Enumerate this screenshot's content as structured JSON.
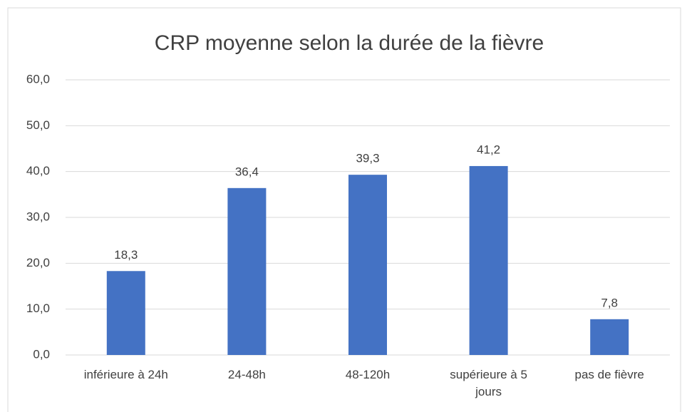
{
  "chart_data": {
    "type": "bar",
    "title": "CRP moyenne selon la durée de la fièvre",
    "categories": [
      "inférieure à 24h",
      "24-48h",
      "48-120h",
      "supérieure à 5 jours",
      "pas de fièvre"
    ],
    "values": [
      18.3,
      36.4,
      39.3,
      41.2,
      7.8
    ],
    "value_labels": [
      "18,3",
      "36,4",
      "39,3",
      "41,2",
      "7,8"
    ],
    "color": "#4472c4",
    "ylim": [
      0,
      60
    ],
    "yticks": [
      {
        "value": 0,
        "label": "0,0"
      },
      {
        "value": 10,
        "label": "10,0"
      },
      {
        "value": 20,
        "label": "20,0"
      },
      {
        "value": 30,
        "label": "30,0"
      },
      {
        "value": 40,
        "label": "40,0"
      },
      {
        "value": 50,
        "label": "50,0"
      },
      {
        "value": 60,
        "label": "60,0"
      }
    ],
    "grid": true
  }
}
